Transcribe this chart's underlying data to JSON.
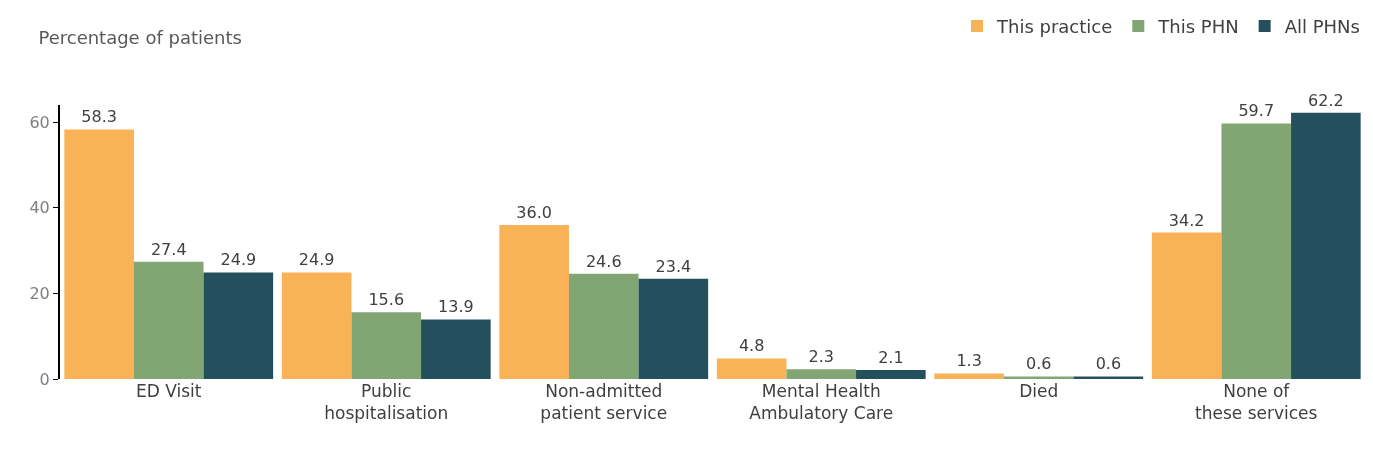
{
  "chart_data": {
    "type": "bar",
    "title": "Percentage of patients",
    "categories": [
      "ED Visit",
      "Public\nhospitalisation",
      "Non-admitted\npatient service",
      "Mental Health\nAmbulatory Care",
      "Died",
      "None of\nthese services"
    ],
    "series": [
      {
        "name": "This practice",
        "color": "#f9b256",
        "values": [
          58.3,
          24.9,
          36.0,
          4.8,
          1.3,
          34.2
        ],
        "value_labels": [
          "58.3",
          "24.9",
          "36.0",
          "4.8",
          "1.3",
          "34.2"
        ]
      },
      {
        "name": "This PHN",
        "color": "#82a673",
        "values": [
          27.4,
          15.6,
          24.6,
          2.3,
          0.6,
          59.7
        ],
        "value_labels": [
          "27.4",
          "15.6",
          "24.6",
          "2.3",
          "0.6",
          "59.7"
        ]
      },
      {
        "name": "All PHNs",
        "color": "#244f5c",
        "values": [
          24.9,
          13.9,
          23.4,
          2.1,
          0.6,
          62.2
        ],
        "value_labels": [
          "24.9",
          "13.9",
          "23.4",
          "2.1",
          "0.6",
          "62.2"
        ]
      }
    ],
    "ylim": [
      0,
      64
    ],
    "yticks": [
      0,
      20,
      40,
      60
    ],
    "legend": "top right"
  }
}
